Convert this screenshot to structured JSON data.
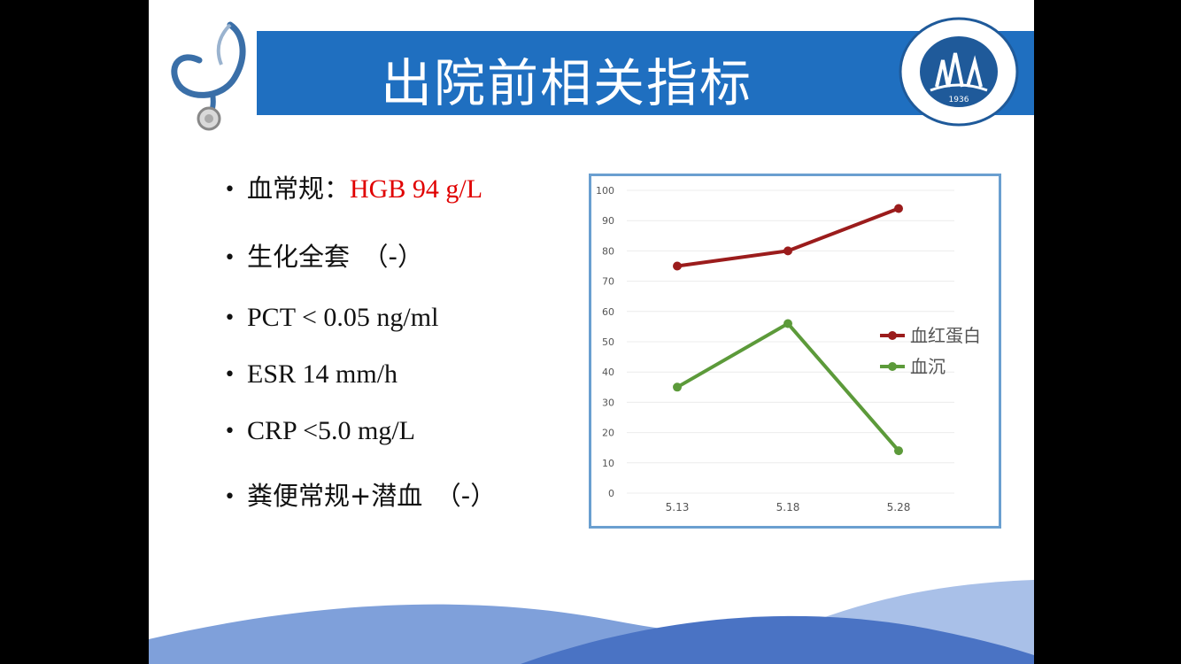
{
  "slide": {
    "title": "出院前相关指标"
  },
  "bullets": [
    {
      "label": "血常规：",
      "value": "HGB 94 g/L"
    },
    {
      "label": "生化全套　（-）"
    },
    {
      "label": "PCT  < 0.05 ng/ml"
    },
    {
      "label": "ESR  14 mm/h"
    },
    {
      "label": "CRP  <5.0 mg/L"
    },
    {
      "label": "粪便常规+潜血　（-）"
    }
  ],
  "chart_data": {
    "type": "line",
    "categories": [
      "5.13",
      "5.18",
      "5.28"
    ],
    "series": [
      {
        "name": "血红蛋白",
        "values": [
          75,
          80,
          94
        ],
        "color": "#9b1c1c"
      },
      {
        "name": "血沉",
        "values": [
          35,
          56,
          14
        ],
        "color": "#5c9a3a"
      }
    ],
    "ylim": [
      0,
      100
    ],
    "yticks": [
      "0",
      "10",
      "20",
      "30",
      "40",
      "50",
      "60",
      "70",
      "80",
      "90",
      "100"
    ],
    "grid": true,
    "legend": "right"
  },
  "seal": {
    "year": "1936"
  },
  "colors": {
    "title_bar": "#1f6fc0",
    "highlight": "#e00000"
  }
}
